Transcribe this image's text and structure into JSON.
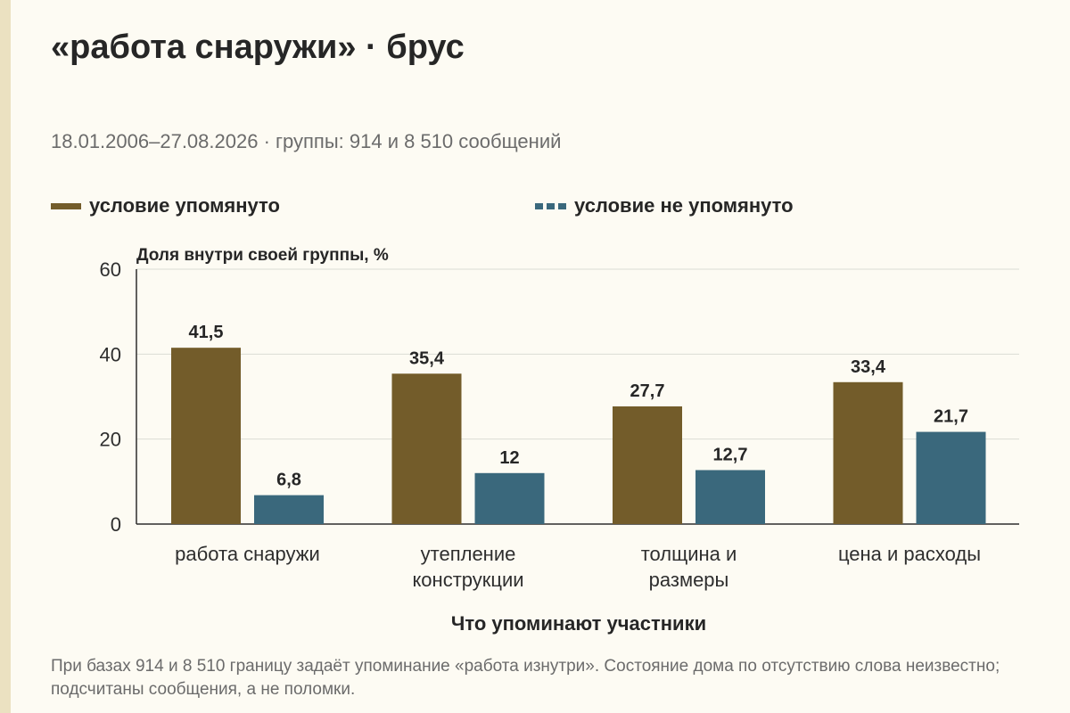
{
  "title": "«работа снаружи» · брус",
  "subtitle": "18.01.2006–27.08.2026 · группы: 914 и 8 510 сообщений",
  "note": "При базах 914 и 8 510 границу задаёт упоминание «работа изнутри». Состояние дома по отсутствию слова неизвестно; подсчитаны сообщения, а не поломки.",
  "colors": {
    "mentioned": "#735c2a",
    "not_mentioned": "#3a687c",
    "grid": "#dcdcd4",
    "axis": "#2e2e2e"
  },
  "chart_data": {
    "type": "bar",
    "title": "«работа снаружи» · брус",
    "ylabel": "Доля внутри своей группы, %",
    "xlabel": "Что упоминают участники",
    "ylim": [
      0,
      60
    ],
    "yticks": [
      0,
      20,
      40,
      60
    ],
    "grid": true,
    "legend_position": "top",
    "categories": [
      [
        "работа снаружи"
      ],
      [
        "утепление",
        "конструкции"
      ],
      [
        "толщина и",
        "размеры"
      ],
      [
        "цена и расходы"
      ]
    ],
    "series": [
      {
        "name": "условие упомянуто",
        "values": [
          41.5,
          35.4,
          27.7,
          33.4
        ],
        "labels": [
          "41,5",
          "35,4",
          "27,7",
          "33,4"
        ]
      },
      {
        "name": "условие не упомянуто",
        "values": [
          6.8,
          12,
          12.7,
          21.7
        ],
        "labels": [
          "6,8",
          "12",
          "12,7",
          "21,7"
        ]
      }
    ]
  }
}
